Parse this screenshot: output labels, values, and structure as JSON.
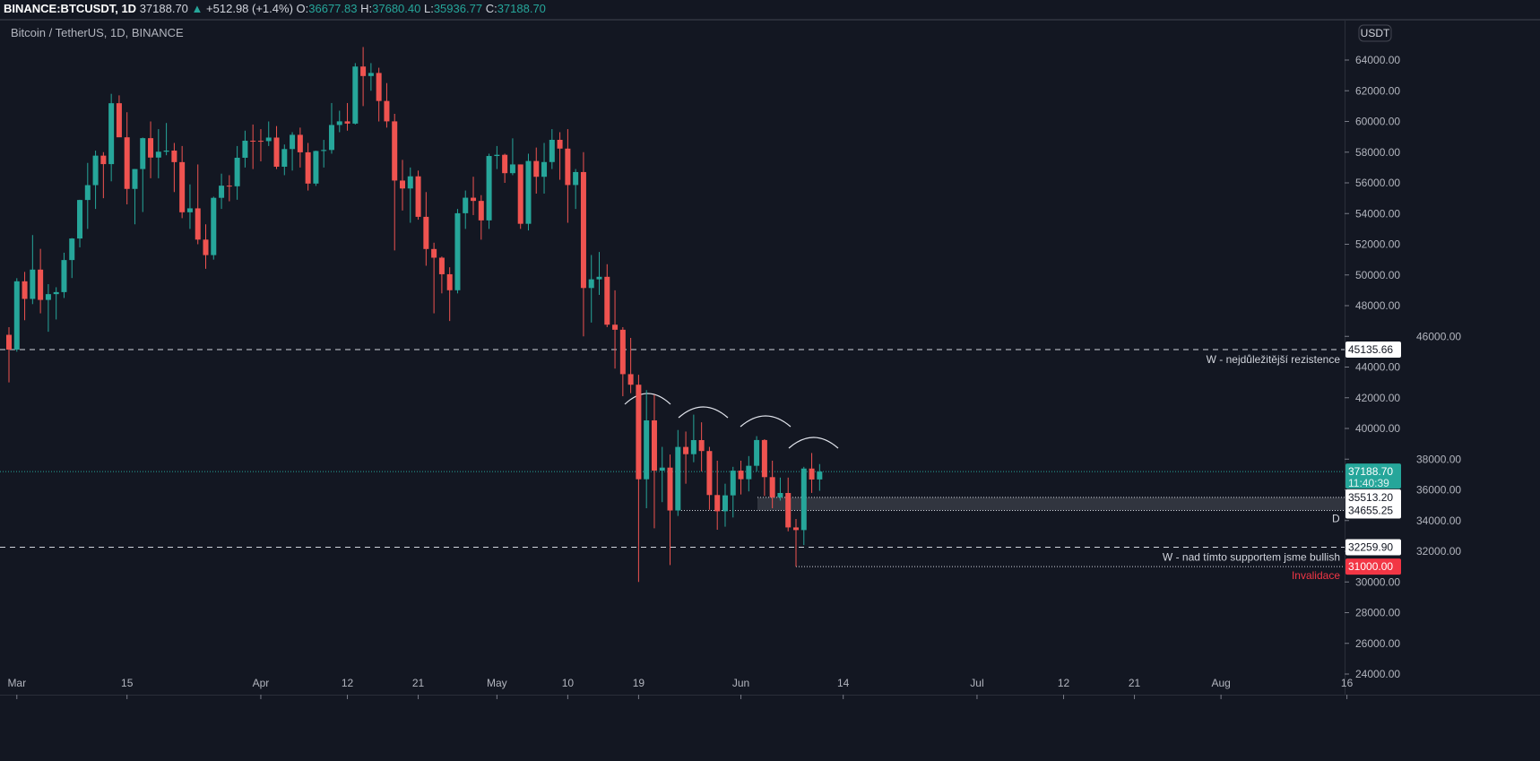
{
  "header": {
    "symbol": "BINANCE:BTCUSDT, 1D",
    "last": "37188.70",
    "change": "+512.98 (+1.4%)",
    "o_label": "O:",
    "o": "36677.83",
    "h_label": "H:",
    "h": "37680.40",
    "l_label": "L:",
    "l": "35936.77",
    "c_label": "C:",
    "c": "37188.70"
  },
  "title": "Bitcoin / TetherUS, 1D, BINANCE",
  "currency_badge": "USDT",
  "colors": {
    "up": "#26a69a",
    "down": "#ef5350",
    "bg": "#131722",
    "invalid": "#f23645"
  },
  "chart_data": {
    "type": "candlestick",
    "title": "Bitcoin / TetherUS, 1D, BINANCE",
    "ylim": [
      23000,
      65500
    ],
    "y_ticks": [
      24000,
      26000,
      28000,
      30000,
      32000,
      34000,
      36000,
      38000,
      40000,
      42000,
      44000,
      46000,
      48000,
      50000,
      52000,
      54000,
      56000,
      58000,
      60000,
      62000,
      64000
    ],
    "y_tick_labels": [
      "24000.00",
      "26000.00",
      "28000.00",
      "30000.00",
      "32000.00",
      "34000.00",
      "36000.00",
      "38000.00",
      "40000.00",
      "42000.00",
      "44000.00",
      "46000.00",
      "48000.00",
      "50000.00",
      "52000.00",
      "54000.00",
      "56000.00",
      "58000.00",
      "60000.00",
      "62000.00",
      "64000.00"
    ],
    "x_start_date": "2021-02-28",
    "x_ticks": [
      {
        "day": 1,
        "label": "Mar"
      },
      {
        "day": 15,
        "label": "15"
      },
      {
        "day": 32,
        "label": "Apr"
      },
      {
        "day": 43,
        "label": "12"
      },
      {
        "day": 52,
        "label": "21"
      },
      {
        "day": 62,
        "label": "May"
      },
      {
        "day": 71,
        "label": "10"
      },
      {
        "day": 80,
        "label": "19"
      },
      {
        "day": 93,
        "label": "Jun"
      },
      {
        "day": 106,
        "label": "14"
      },
      {
        "day": 123,
        "label": "Jul"
      },
      {
        "day": 134,
        "label": "12"
      },
      {
        "day": 143,
        "label": "21"
      },
      {
        "day": 154,
        "label": "Aug"
      },
      {
        "day": 170,
        "label": "16"
      }
    ],
    "ohlc": [
      [
        46100,
        46600,
        43000,
        45135
      ],
      [
        45135,
        49790,
        45000,
        49587
      ],
      [
        49587,
        50200,
        47050,
        48440
      ],
      [
        48440,
        52600,
        48100,
        50349
      ],
      [
        50349,
        51700,
        47500,
        48374
      ],
      [
        48374,
        49400,
        46300,
        48751
      ],
      [
        48751,
        49200,
        47100,
        48882
      ],
      [
        48882,
        51450,
        48500,
        50971
      ],
      [
        50971,
        52400,
        49800,
        52375
      ],
      [
        52375,
        54900,
        51800,
        54884
      ],
      [
        54884,
        57300,
        53000,
        55851
      ],
      [
        55851,
        58100,
        54300,
        57773
      ],
      [
        57773,
        58000,
        55000,
        57221
      ],
      [
        57221,
        61800,
        56100,
        61188
      ],
      [
        61188,
        61700,
        59100,
        58968
      ],
      [
        58968,
        60600,
        54600,
        55605
      ],
      [
        55605,
        56900,
        53300,
        56900
      ],
      [
        56900,
        58950,
        54100,
        58912
      ],
      [
        58912,
        60000,
        56300,
        57648
      ],
      [
        57648,
        59500,
        56300,
        58030
      ],
      [
        58030,
        59900,
        57800,
        58102
      ],
      [
        58102,
        58600,
        55400,
        57351
      ],
      [
        57351,
        58400,
        53700,
        54083
      ],
      [
        54083,
        55900,
        53000,
        54340
      ],
      [
        54340,
        57200,
        52000,
        52303
      ],
      [
        52303,
        53300,
        50400,
        51293
      ],
      [
        51293,
        55100,
        51000,
        55025
      ],
      [
        55025,
        56600,
        54300,
        55817
      ],
      [
        55817,
        56500,
        54800,
        55777
      ],
      [
        55777,
        58400,
        54900,
        57635
      ],
      [
        57635,
        59400,
        57000,
        58746
      ],
      [
        58746,
        59800,
        56900,
        58740
      ],
      [
        58740,
        59500,
        57400,
        58720
      ],
      [
        58720,
        60000,
        58400,
        58950
      ],
      [
        58950,
        59700,
        56900,
        57051
      ],
      [
        57051,
        58500,
        56500,
        58202
      ],
      [
        58202,
        59300,
        56800,
        59129
      ],
      [
        59129,
        59600,
        57000,
        57991
      ],
      [
        57991,
        58600,
        55500,
        55953
      ],
      [
        55953,
        58100,
        55800,
        58077
      ],
      [
        58077,
        58800,
        57000,
        58142
      ],
      [
        58142,
        61200,
        57900,
        59770
      ],
      [
        59770,
        60700,
        59300,
        60007
      ],
      [
        60007,
        61200,
        59400,
        59860
      ],
      [
        59860,
        63800,
        59800,
        63578
      ],
      [
        63578,
        64850,
        61000,
        62959
      ],
      [
        62959,
        63800,
        62000,
        63159
      ],
      [
        63159,
        63500,
        60000,
        61334
      ],
      [
        61334,
        62500,
        59600,
        60006
      ],
      [
        60006,
        60500,
        51600,
        56150
      ],
      [
        56150,
        57500,
        54200,
        55633
      ],
      [
        55633,
        57000,
        53400,
        56425
      ],
      [
        56425,
        56800,
        53600,
        53787
      ],
      [
        53787,
        55400,
        50600,
        51690
      ],
      [
        51690,
        52100,
        47500,
        51125
      ],
      [
        51125,
        51200,
        48800,
        50047
      ],
      [
        50047,
        50500,
        47000,
        49004
      ],
      [
        49004,
        54300,
        48800,
        54021
      ],
      [
        54021,
        55500,
        53000,
        55033
      ],
      [
        55033,
        56400,
        53900,
        54824
      ],
      [
        54824,
        55200,
        52300,
        53555
      ],
      [
        53555,
        57900,
        53000,
        57750
      ],
      [
        57750,
        58400,
        56900,
        57828
      ],
      [
        57828,
        57900,
        56000,
        56631
      ],
      [
        56631,
        58900,
        56500,
        57200
      ],
      [
        57200,
        57200,
        53000,
        53333
      ],
      [
        53333,
        57900,
        52900,
        57424
      ],
      [
        57424,
        58300,
        55300,
        56396
      ],
      [
        56396,
        58600,
        55300,
        57356
      ],
      [
        57356,
        59500,
        56900,
        58803
      ],
      [
        58803,
        59300,
        56200,
        58232
      ],
      [
        58232,
        59500,
        53400,
        55859
      ],
      [
        55859,
        56900,
        54300,
        56704
      ],
      [
        56704,
        58000,
        46000,
        49150
      ],
      [
        49150,
        51300,
        46900,
        49716
      ],
      [
        49716,
        51500,
        48700,
        49880
      ],
      [
        49880,
        50700,
        46600,
        46760
      ],
      [
        46760,
        49000,
        43900,
        46431
      ],
      [
        46431,
        46600,
        42100,
        43538
      ],
      [
        43538,
        45900,
        42300,
        42849
      ],
      [
        42849,
        43500,
        30000,
        36690
      ],
      [
        36690,
        42500,
        34800,
        40526
      ],
      [
        40526,
        42200,
        33500,
        37252
      ],
      [
        37252,
        38800,
        35200,
        37449
      ],
      [
        37449,
        38300,
        31100,
        34655
      ],
      [
        34655,
        39900,
        34300,
        38796
      ],
      [
        38796,
        39800,
        36400,
        38324
      ],
      [
        38324,
        40900,
        37800,
        39241
      ],
      [
        39241,
        40400,
        37200,
        38529
      ],
      [
        38529,
        38800,
        34700,
        35663
      ],
      [
        35663,
        37900,
        33400,
        34605
      ],
      [
        34605,
        36400,
        33600,
        35641
      ],
      [
        35641,
        37500,
        34200,
        37253
      ],
      [
        37253,
        37900,
        35700,
        36693
      ],
      [
        36693,
        38200,
        35900,
        37568
      ],
      [
        37568,
        39500,
        37200,
        39246
      ],
      [
        39246,
        39300,
        35600,
        36829
      ],
      [
        36829,
        37900,
        34800,
        35513
      ],
      [
        35513,
        36800,
        35300,
        35796
      ],
      [
        35796,
        36800,
        33300,
        33552
      ],
      [
        33552,
        34100,
        31000,
        33380
      ],
      [
        33380,
        37500,
        32400,
        37388
      ],
      [
        37388,
        38400,
        35800,
        36675
      ],
      [
        36677.83,
        37680.4,
        35936.77,
        37188.7
      ]
    ],
    "hlines": [
      {
        "price": 45135.66,
        "label": "45135.66",
        "note": "W - nejdůležitější rezistence",
        "style": "dashed"
      },
      {
        "price": 32259.9,
        "label": "32259.90",
        "note": "W - nad tímto supportem jsme bullish",
        "style": "dashed"
      },
      {
        "price": 31000.0,
        "label": "31000.00",
        "note": "Invalidace",
        "style": "dotted"
      },
      {
        "price": 37188.7,
        "label": "37188.70",
        "note": "",
        "style": "last"
      }
    ],
    "zone": {
      "top": 35513.2,
      "bottom": 34655.25,
      "top_label": "35513.20",
      "bottom_label": "34655.25",
      "note": "D"
    },
    "countdown": "11:40:39"
  }
}
